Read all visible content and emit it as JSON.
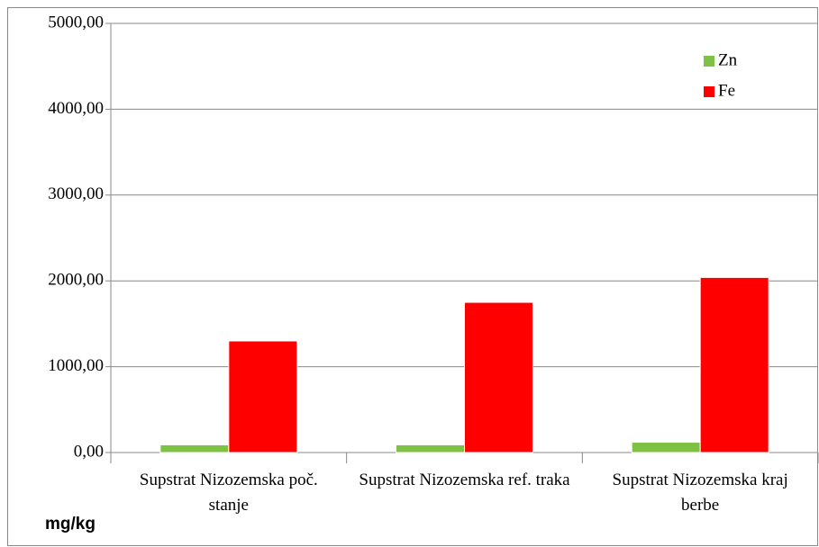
{
  "chart_data": {
    "type": "bar",
    "categories": [
      "Supstrat Nizozemska poč. stanje",
      "Supstrat Nizozemska ref. traka",
      "Supstrat Nizozemska kraj berbe"
    ],
    "series": [
      {
        "name": "Zn",
        "color": "#7dc242",
        "values": [
          90,
          90,
          120
        ]
      },
      {
        "name": "Fe",
        "color": "#ff0000",
        "values": [
          1300,
          1750,
          2040
        ]
      }
    ],
    "ylim": [
      0,
      5000
    ],
    "yticks": [
      {
        "value": 0,
        "label": "0,00"
      },
      {
        "value": 1000,
        "label": "1000,00"
      },
      {
        "value": 2000,
        "label": "2000,00"
      },
      {
        "value": 3000,
        "label": "3000,00"
      },
      {
        "value": 4000,
        "label": "4000,00"
      },
      {
        "value": 5000,
        "label": "5000,00"
      }
    ],
    "grid": true,
    "legend": "upper right",
    "ylabel": "mg/kg"
  }
}
